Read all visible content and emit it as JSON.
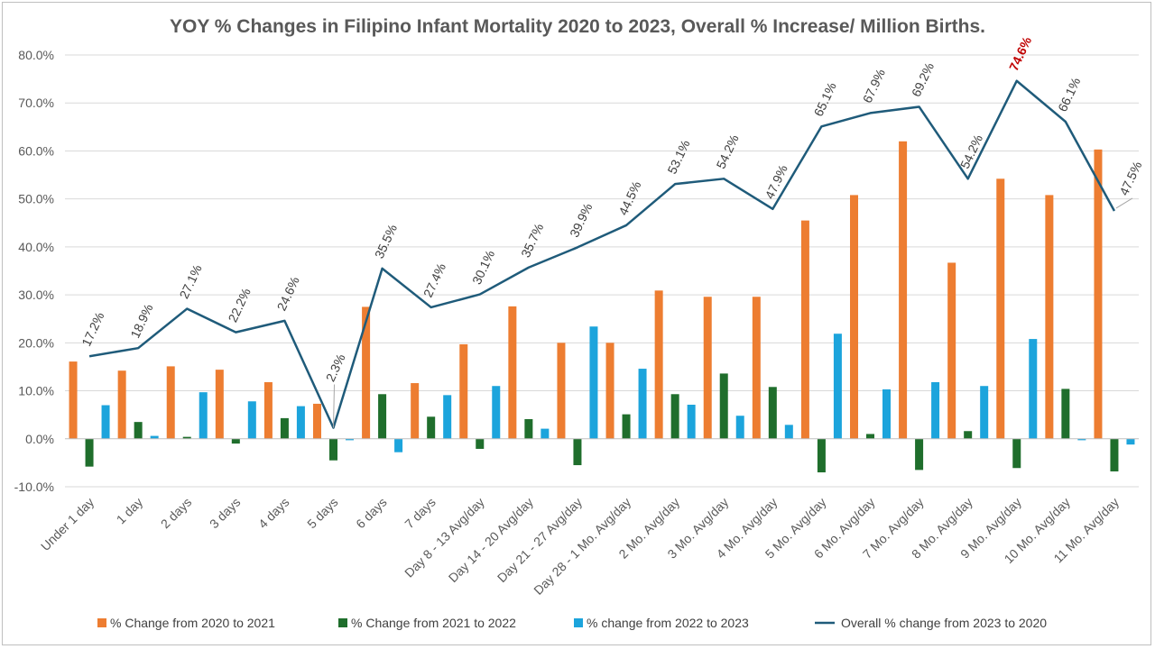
{
  "chart_data": {
    "type": "bar",
    "title": "YOY % Changes in Filipino Infant Mortality 2020 to 2023, Overall % Increase/ Million Births.",
    "xlabel": "",
    "ylabel": "",
    "ylim": [
      -10,
      80
    ],
    "y_ticks": [
      "80.0%",
      "70.0%",
      "60.0%",
      "50.0%",
      "40.0%",
      "30.0%",
      "20.0%",
      "10.0%",
      "0.0%",
      "-10.0%"
    ],
    "y_tick_values": [
      80,
      70,
      60,
      50,
      40,
      30,
      20,
      10,
      0,
      -10
    ],
    "grid": true,
    "legend_position": "bottom",
    "categories": [
      "Under 1 day",
      "1 day",
      "2 days",
      "3 days",
      "4 days",
      "5 days",
      "6 days",
      "7 days",
      "Day 8 - 13 Avg/day",
      "Day 14 - 20 Avg/day",
      "Day 21 - 27 Avg/day",
      "Day 28 - 1 Mo. Avg/day",
      "2 Mo. Avg/day",
      "3 Mo. Avg/day",
      "4 Mo. Avg/day",
      "5 Mo. Avg/day",
      "6 Mo. Avg/day",
      "7 Mo. Avg/day",
      "8 Mo. Avg/day",
      "9 Mo. Avg/day",
      "10 Mo. Avg/day",
      "11 Mo. Avg/day"
    ],
    "series": [
      {
        "name": "% Change from 2020 to 2021",
        "type": "bar",
        "color": "#ed7d31",
        "values": [
          16.1,
          14.2,
          15.1,
          14.4,
          11.8,
          7.3,
          27.5,
          11.6,
          19.7,
          27.6,
          20.0,
          20.0,
          30.9,
          29.6,
          29.6,
          45.5,
          50.8,
          62.0,
          36.7,
          54.2,
          50.8,
          60.3
        ]
      },
      {
        "name": "% Change from 2021 to 2022",
        "type": "bar",
        "color": "#1f6e2c",
        "values": [
          -5.8,
          3.5,
          0.4,
          -1.0,
          4.3,
          -4.5,
          9.3,
          4.6,
          -2.1,
          4.1,
          -5.5,
          5.1,
          9.3,
          13.6,
          10.8,
          -7.0,
          1.0,
          -6.5,
          1.6,
          -6.1,
          10.4,
          -6.8
        ]
      },
      {
        "name": "% change from 2022 to 2023",
        "type": "bar",
        "color": "#1ca4dc",
        "values": [
          7.0,
          0.6,
          9.7,
          7.8,
          6.8,
          -0.3,
          -2.8,
          9.1,
          11.0,
          2.1,
          23.4,
          14.6,
          7.1,
          4.8,
          2.9,
          21.9,
          10.3,
          11.8,
          11.0,
          20.8,
          -0.3,
          -1.2
        ]
      },
      {
        "name": "Overall % change from 2023 to 2020",
        "type": "line",
        "color": "#1f5b7a",
        "values": [
          17.2,
          18.9,
          27.1,
          22.2,
          24.6,
          2.3,
          35.5,
          27.4,
          30.1,
          35.7,
          39.9,
          44.5,
          53.1,
          54.2,
          47.9,
          65.1,
          67.9,
          69.2,
          54.2,
          74.6,
          66.1,
          47.5
        ],
        "labels": [
          "17.2%",
          "18.9%",
          "27.1%",
          "22.2%",
          "24.6%",
          "2.3%",
          "35.5%",
          "27.4%",
          "30.1%",
          "35.7%",
          "39.9%",
          "44.5%",
          "53.1%",
          "54.2%",
          "47.9%",
          "65.1%",
          "67.9%",
          "69.2%",
          "54.2%",
          "74.6%",
          "66.1%",
          "47.5%"
        ],
        "highlight_index": 19,
        "highlight_color": "#c00000"
      }
    ]
  }
}
